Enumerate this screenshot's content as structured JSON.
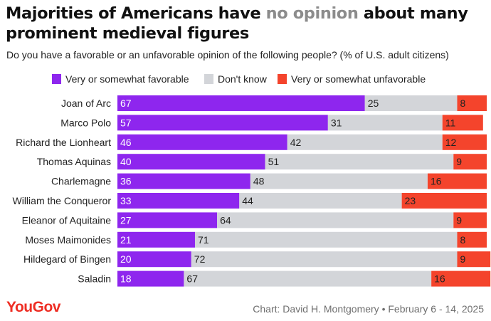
{
  "title": {
    "part1": "Majorities of Americans have ",
    "highlight": "no opinion",
    "part2": " about many prominent medieval figures"
  },
  "subtitle": "Do you have a favorable or an unfavorable opinion of the following people? (% of U.S. adult citizens)",
  "footer": {
    "logo": "YouGov",
    "credit": "Chart: David H. Montgomery • February 6 - 14, 2025"
  },
  "colors": {
    "favorable": "#8e26ee",
    "dont_know": "#d3d5d9",
    "unfavorable": "#f4442c",
    "logo": "#ee2e24"
  },
  "chart_data": {
    "type": "bar",
    "orientation": "horizontal",
    "stacked": true,
    "unit": "% of U.S. adult citizens",
    "xlim": [
      0,
      100
    ],
    "legend_position": "top",
    "categories": [
      "Joan of Arc",
      "Marco Polo",
      "Richard the Lionheart",
      "Thomas Aquinas",
      "Charlemagne",
      "William the Conqueror",
      "Eleanor of Aquitaine",
      "Moses Maimonides",
      "Hildegard of Bingen",
      "Saladin"
    ],
    "series": [
      {
        "name": "Very or somewhat favorable",
        "key": "favorable",
        "values": [
          67,
          57,
          46,
          40,
          36,
          33,
          27,
          21,
          20,
          18
        ]
      },
      {
        "name": "Don't know",
        "key": "dont_know",
        "values": [
          25,
          31,
          42,
          51,
          48,
          44,
          64,
          71,
          72,
          67
        ]
      },
      {
        "name": "Very or somewhat unfavorable",
        "key": "unfavorable",
        "values": [
          8,
          11,
          12,
          9,
          16,
          23,
          9,
          8,
          9,
          16
        ]
      }
    ]
  }
}
